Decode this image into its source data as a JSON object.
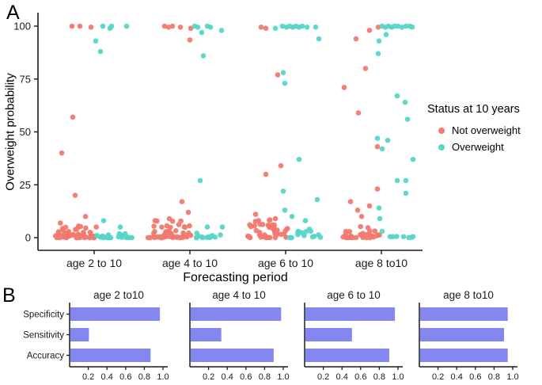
{
  "figure": {
    "panel_a_label": "A",
    "panel_b_label": "B"
  },
  "colors": {
    "not_overweight": "#F2796F",
    "overweight": "#55D6C7",
    "bar": "#8587F0",
    "axis": "#1a1a1a",
    "text": "#1a1a1a"
  },
  "panel_a": {
    "y_axis": {
      "title": "Overweight probability",
      "ticks": [
        0,
        25,
        50,
        75,
        100
      ],
      "range": [
        0,
        100
      ]
    },
    "x_axis": {
      "title": "Forecasting period",
      "categories": [
        "age 2 to 10",
        "age 4 to 10",
        "age 6 to 10",
        "age 8 to10"
      ]
    },
    "legend": {
      "title": "Status at 10 years",
      "items": [
        {
          "label": "Not overweight",
          "color_key": "not_overweight"
        },
        {
          "label": "Overweight",
          "color_key": "overweight"
        }
      ]
    }
  },
  "panel_b": {
    "categories": [
      "Specificity",
      "Sensitivity",
      "Accuracy"
    ],
    "xticks": [
      "0.2",
      "0.4",
      "0.6",
      "0.8",
      "1.0"
    ]
  },
  "chart_data": [
    {
      "type": "scatter",
      "subtype": "jitter",
      "title": "Overweight probability by forecasting period, colored by status at 10 years",
      "xlabel": "Forecasting period",
      "ylabel": "Overweight probability",
      "ylim": [
        0,
        100
      ],
      "categories": [
        "age 2 to 10",
        "age 4 to 10",
        "age 6 to 10",
        "age 8 to10"
      ],
      "series_names": [
        "Not overweight",
        "Overweight"
      ],
      "point_format": "[group_index, status_index(0=not_overweight,1=overweight), x_jitter_offset_px, probability]",
      "points": [
        [
          0,
          0,
          -28,
          100
        ],
        [
          0,
          0,
          -18,
          100
        ],
        [
          0,
          0,
          -4,
          99.5
        ],
        [
          0,
          1,
          11,
          100
        ],
        [
          0,
          1,
          20,
          99
        ],
        [
          0,
          1,
          22,
          100
        ],
        [
          0,
          1,
          41,
          100
        ],
        [
          0,
          1,
          2,
          93
        ],
        [
          0,
          1,
          8,
          88
        ],
        [
          0,
          0,
          -27,
          57
        ],
        [
          0,
          0,
          -41,
          40
        ],
        [
          0,
          0,
          -24,
          20
        ],
        [
          0,
          0,
          -11,
          10
        ],
        [
          0,
          1,
          12,
          8
        ],
        [
          0,
          1,
          33,
          5
        ],
        [
          1,
          0,
          -32,
          100
        ],
        [
          1,
          0,
          -27,
          99.5
        ],
        [
          1,
          0,
          -22,
          100
        ],
        [
          1,
          0,
          -12,
          99.5
        ],
        [
          1,
          0,
          1,
          99
        ],
        [
          1,
          0,
          0,
          93.5
        ],
        [
          1,
          1,
          6,
          100
        ],
        [
          1,
          1,
          10,
          99.5
        ],
        [
          1,
          1,
          15,
          97
        ],
        [
          1,
          1,
          22,
          100
        ],
        [
          1,
          1,
          26,
          99.5
        ],
        [
          1,
          1,
          40,
          98
        ],
        [
          1,
          1,
          17,
          86
        ],
        [
          1,
          1,
          13,
          27
        ],
        [
          1,
          0,
          -10,
          17
        ],
        [
          1,
          0,
          -44,
          8
        ],
        [
          1,
          0,
          -26,
          9
        ],
        [
          1,
          0,
          -2,
          12
        ],
        [
          1,
          1,
          22,
          5
        ],
        [
          1,
          1,
          41,
          5
        ],
        [
          2,
          0,
          -31,
          99.5
        ],
        [
          2,
          0,
          -25,
          99
        ],
        [
          2,
          1,
          -13,
          99
        ],
        [
          2,
          1,
          -4,
          100
        ],
        [
          2,
          1,
          1,
          99.5
        ],
        [
          2,
          1,
          5,
          100
        ],
        [
          2,
          1,
          9,
          99.5
        ],
        [
          2,
          1,
          13,
          100
        ],
        [
          2,
          1,
          17,
          99.5
        ],
        [
          2,
          1,
          21,
          100
        ],
        [
          2,
          1,
          27,
          99.5
        ],
        [
          2,
          1,
          38,
          99.5
        ],
        [
          2,
          1,
          42,
          94
        ],
        [
          2,
          0,
          -10,
          77
        ],
        [
          2,
          1,
          -3,
          78
        ],
        [
          2,
          1,
          -1,
          73
        ],
        [
          2,
          1,
          17,
          37
        ],
        [
          2,
          0,
          -6,
          34
        ],
        [
          2,
          0,
          -25,
          30
        ],
        [
          2,
          1,
          -3,
          22
        ],
        [
          2,
          1,
          40,
          18
        ],
        [
          2,
          1,
          -1,
          13
        ],
        [
          2,
          0,
          -38,
          11
        ],
        [
          2,
          0,
          -13,
          9
        ],
        [
          2,
          1,
          8,
          10
        ],
        [
          2,
          1,
          25,
          8
        ],
        [
          2,
          1,
          30,
          4
        ],
        [
          2,
          1,
          16,
          3
        ],
        [
          3,
          0,
          -15,
          98
        ],
        [
          3,
          0,
          -4,
          99.5
        ],
        [
          3,
          1,
          1,
          100
        ],
        [
          3,
          1,
          5,
          99.5
        ],
        [
          3,
          1,
          9,
          100
        ],
        [
          3,
          1,
          13,
          99.5
        ],
        [
          3,
          1,
          17,
          100
        ],
        [
          3,
          1,
          21,
          100
        ],
        [
          3,
          1,
          26,
          99.5
        ],
        [
          3,
          1,
          31,
          100
        ],
        [
          3,
          1,
          36,
          100
        ],
        [
          3,
          1,
          39,
          99.5
        ],
        [
          3,
          1,
          6,
          96
        ],
        [
          3,
          0,
          -32,
          94
        ],
        [
          3,
          1,
          -3,
          93
        ],
        [
          3,
          1,
          -4,
          87
        ],
        [
          3,
          0,
          -20,
          80
        ],
        [
          3,
          0,
          -47,
          71
        ],
        [
          3,
          1,
          20,
          67
        ],
        [
          3,
          1,
          30,
          64
        ],
        [
          3,
          0,
          -29,
          59
        ],
        [
          3,
          1,
          33,
          56
        ],
        [
          3,
          1,
          -5,
          47
        ],
        [
          3,
          1,
          8,
          46
        ],
        [
          3,
          0,
          -5,
          43
        ],
        [
          3,
          1,
          1,
          42
        ],
        [
          3,
          1,
          40,
          37
        ],
        [
          3,
          1,
          20,
          27
        ],
        [
          3,
          1,
          31,
          27
        ],
        [
          3,
          0,
          -5,
          23
        ],
        [
          3,
          1,
          31,
          21
        ],
        [
          3,
          0,
          -39,
          17
        ],
        [
          3,
          0,
          -15,
          15
        ],
        [
          3,
          0,
          -30,
          13
        ],
        [
          3,
          1,
          -3,
          14
        ],
        [
          3,
          0,
          -25,
          10
        ],
        [
          3,
          1,
          -2,
          9
        ],
        [
          3,
          1,
          1,
          3
        ],
        [
          3,
          1,
          11,
          0.5
        ],
        [
          3,
          1,
          28,
          0.5
        ],
        [
          3,
          1,
          40,
          0.5
        ]
      ],
      "baseline_cluster_format": "[group_index, status_index, count, x_offset_min_px, x_offset_max_px, y_max_probability]",
      "baseline_clusters": [
        [
          0,
          0,
          46,
          -49,
          3,
          7
        ],
        [
          0,
          1,
          20,
          3,
          49,
          2.5
        ],
        [
          1,
          0,
          46,
          -54,
          2,
          8
        ],
        [
          1,
          1,
          15,
          2,
          48,
          2.5
        ],
        [
          2,
          0,
          42,
          -49,
          3,
          9
        ],
        [
          2,
          1,
          13,
          3,
          49,
          4
        ],
        [
          3,
          0,
          30,
          -50,
          -2,
          6
        ],
        [
          3,
          1,
          4,
          8,
          43,
          1.5
        ]
      ]
    },
    {
      "type": "bar",
      "orientation": "horizontal",
      "categories": [
        "Specificity",
        "Sensitivity",
        "Accuracy"
      ],
      "xlim": [
        0,
        1.05
      ],
      "xticks": [
        0.2,
        0.4,
        0.6,
        0.8,
        1.0
      ],
      "facets": [
        {
          "title": "age 2 to10",
          "values": [
            0.96,
            0.2,
            0.86
          ]
        },
        {
          "title": "age 4 to 10",
          "values": [
            0.97,
            0.33,
            0.89
          ]
        },
        {
          "title": "age 6 to 10",
          "values": [
            0.96,
            0.5,
            0.9
          ]
        },
        {
          "title": "age 8 to10",
          "values": [
            0.94,
            0.9,
            0.94
          ]
        }
      ]
    }
  ]
}
